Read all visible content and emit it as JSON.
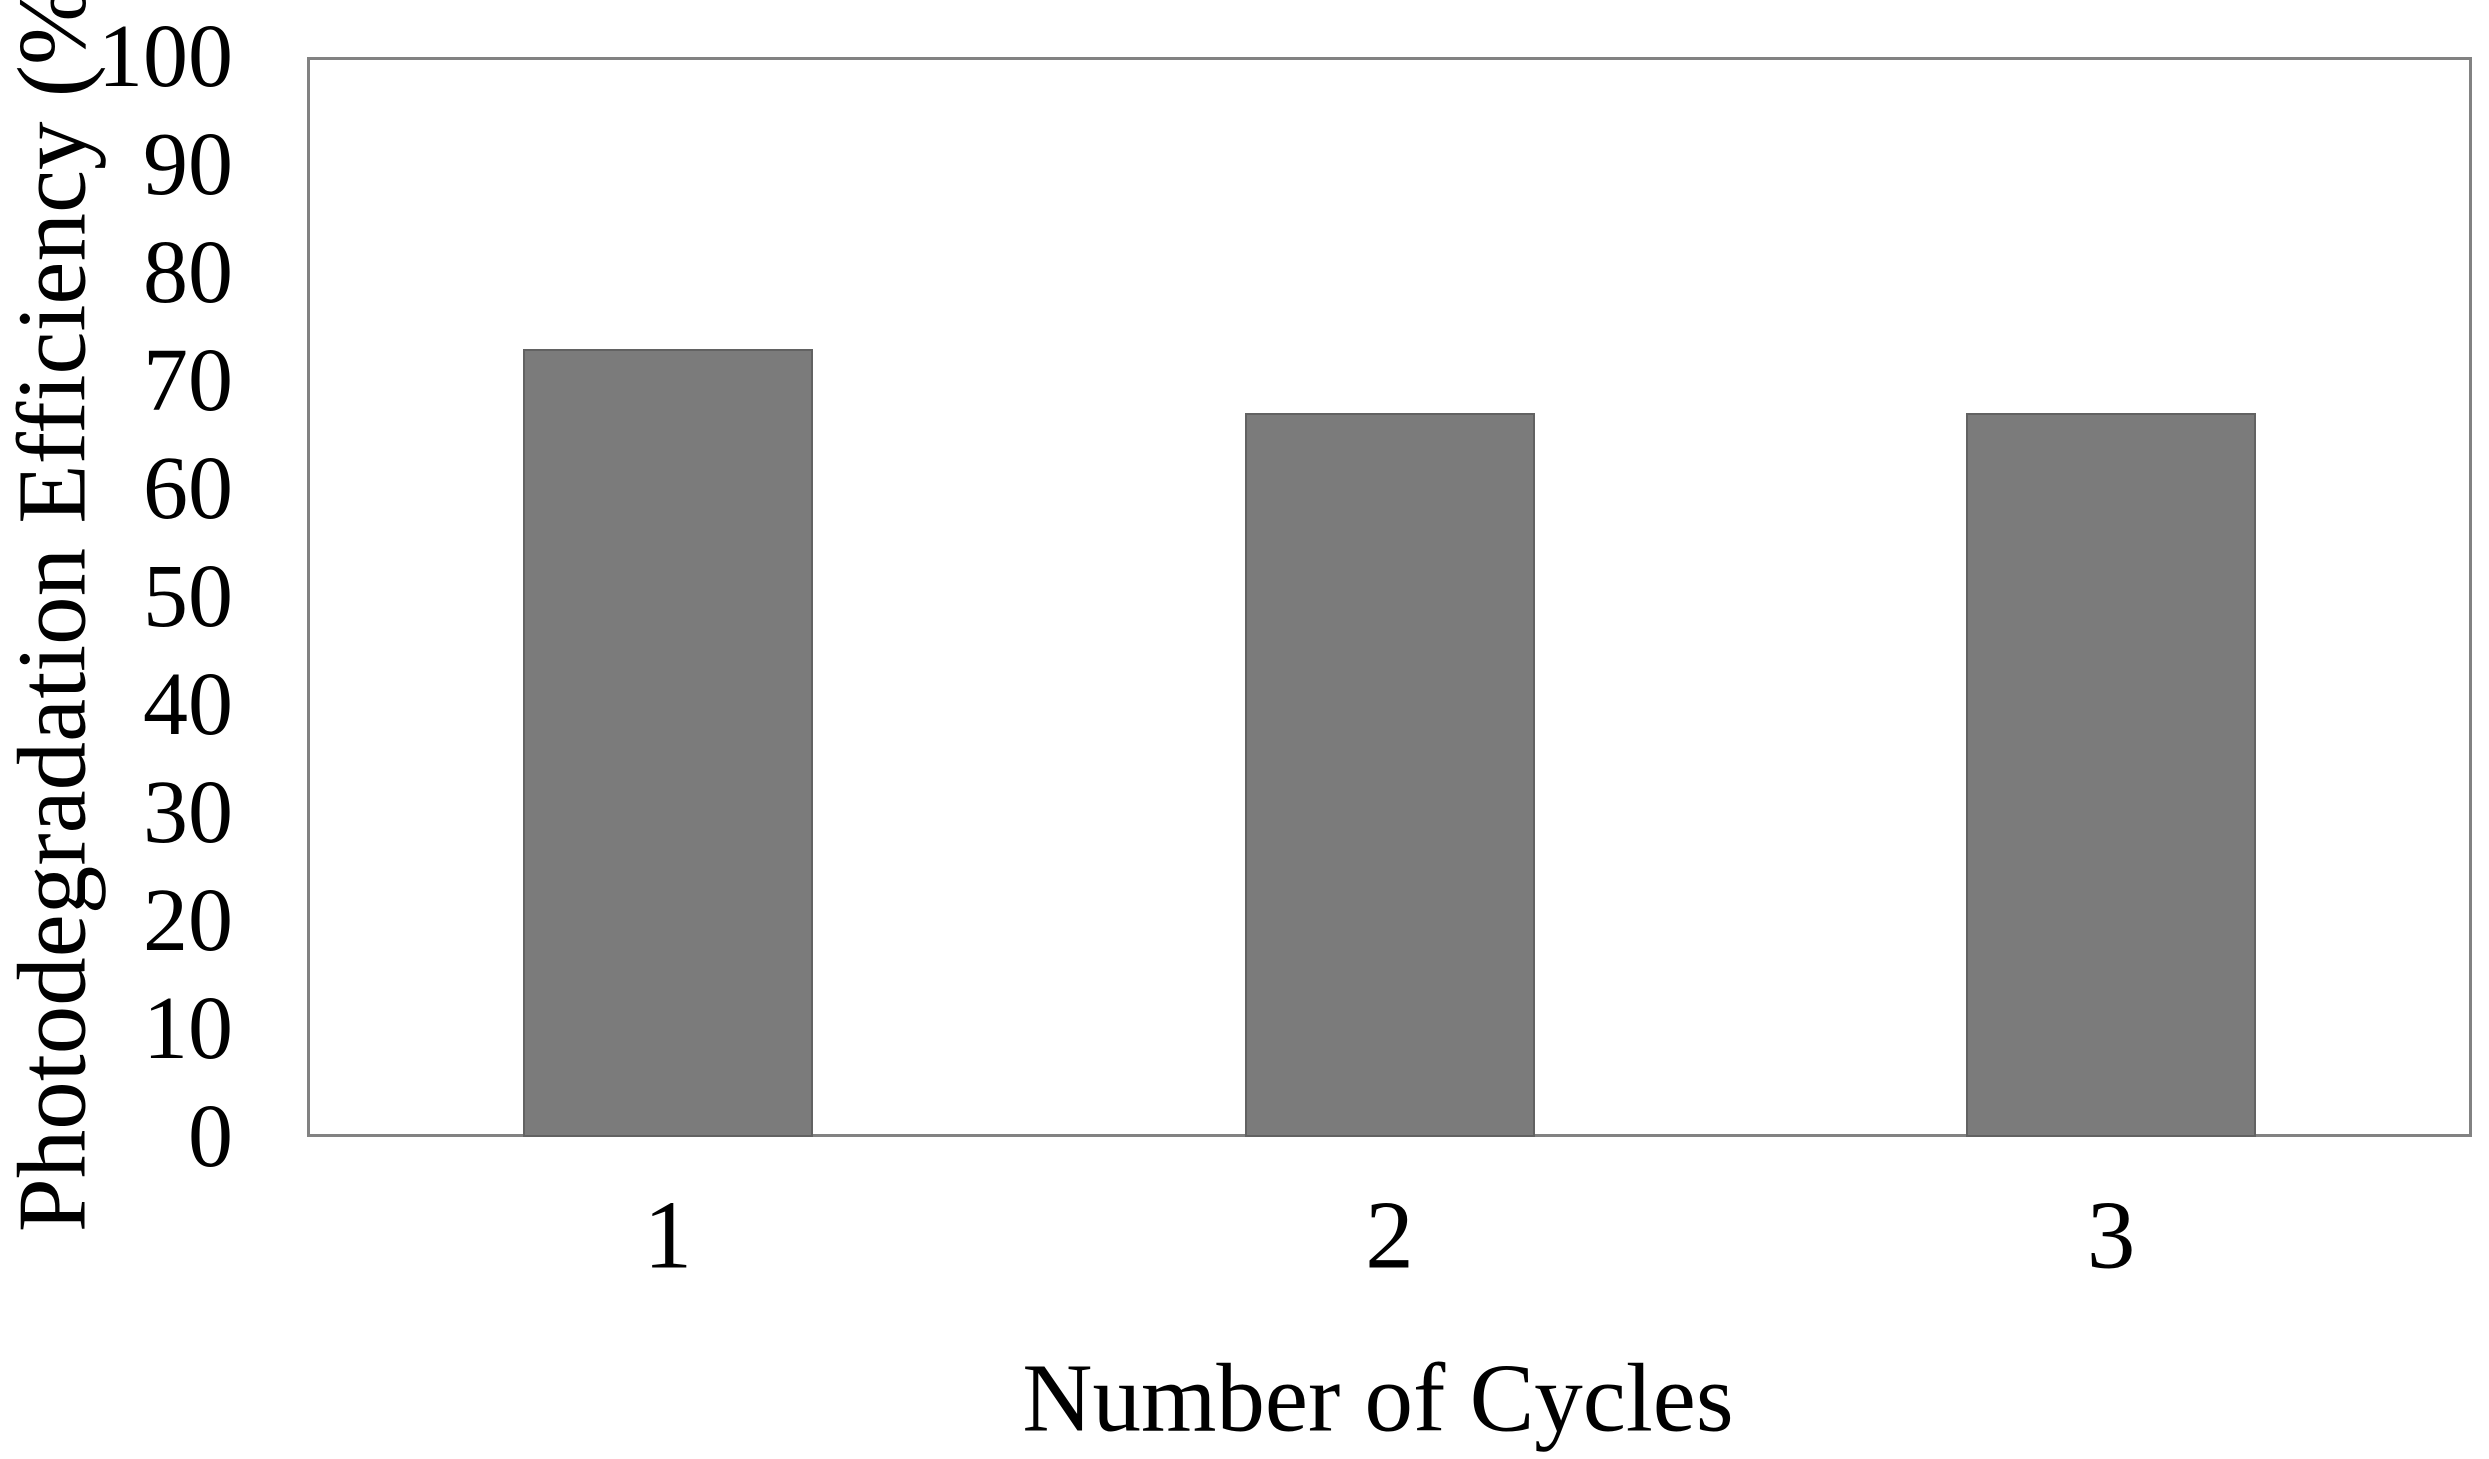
{
  "chart_data": {
    "type": "bar",
    "title": "",
    "categories": [
      "1",
      "2",
      "3"
    ],
    "values": [
      73,
      67,
      67
    ],
    "xlabel": "Number of Cycles",
    "ylabel": "Photodegradation Efficiency (%)",
    "ylim": [
      0,
      100
    ],
    "yticks": [
      0,
      10,
      20,
      30,
      40,
      50,
      60,
      70,
      80,
      90,
      100
    ],
    "grid": false,
    "legend_position": "none",
    "bar_color": "#7b7b7b",
    "bar_border_color": "#626262",
    "axis_frame_color": "#828282",
    "text_color": "#000000",
    "background_color": "#ffffff"
  }
}
